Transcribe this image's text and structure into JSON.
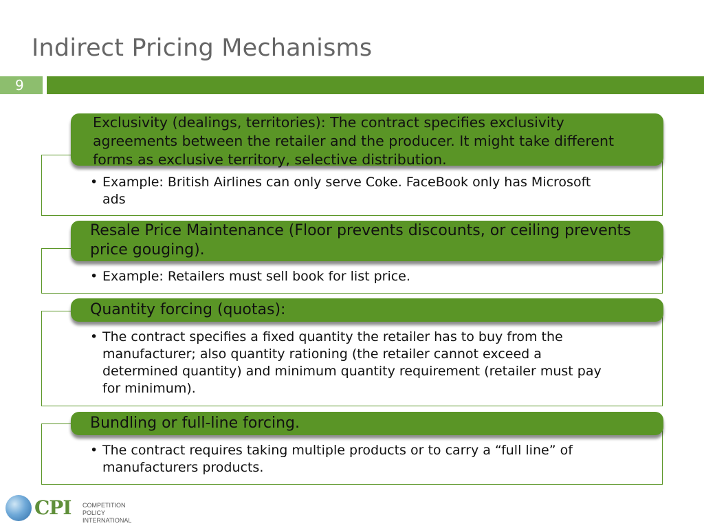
{
  "slide": {
    "title": "Indirect Pricing Mechanisms",
    "number": "9"
  },
  "sections": [
    {
      "heading": "Exclusivity (dealings, territories): The contract specifies exclusivity agreements between the retailer and the producer. It might take different forms as exclusive territory, selective distribution.",
      "bullet": "Example: British Airlines can only serve Coke. FaceBook only has Microsoft ads"
    },
    {
      "heading": "Resale Price Maintenance (Floor prevents discounts, or ceiling prevents price gouging).",
      "bullet": "Example: Retailers must sell book for list price."
    },
    {
      "heading": "Quantity forcing (quotas):",
      "bullet": "The contract specifies a fixed quantity the retailer has to buy from the manufacturer; also quantity rationing (the retailer cannot exceed a determined quantity) and  minimum quantity requirement (retailer must pay for minimum)."
    },
    {
      "heading": "Bundling or full-line forcing.",
      "bullet": "The contract requires taking multiple products or to carry a “full line” of manufacturers products."
    }
  ],
  "bullet_symbol": "•",
  "logo": {
    "name": "CPI",
    "subtitle_line1": "COMPETITION POLICY",
    "subtitle_line2": "INTERNATIONAL",
    "icon": "globe-icon"
  },
  "colors": {
    "accent_green": "#5a9526",
    "light_green": "#8dbe6e",
    "title_gray": "#666666"
  }
}
